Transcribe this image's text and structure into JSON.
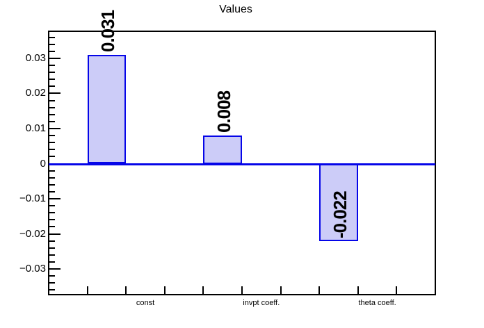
{
  "chart_data": {
    "type": "bar",
    "title": "Values",
    "categories": [
      "const",
      "invpt coeff.",
      "theta coeff."
    ],
    "values": [
      0.031,
      0.008,
      -0.022
    ],
    "value_labels": [
      "0.031",
      "0.008",
      "-0.022"
    ],
    "xlabel": "",
    "ylabel": "",
    "ylim": [
      -0.0373,
      0.0377
    ],
    "y_ticks": [
      {
        "value": 0.03,
        "label": "0.03"
      },
      {
        "value": 0.02,
        "label": "0.02"
      },
      {
        "value": 0.01,
        "label": "0.01"
      },
      {
        "value": 0,
        "label": "0"
      },
      {
        "value": -0.01,
        "label": "−0.01"
      },
      {
        "value": -0.02,
        "label": "−0.02"
      },
      {
        "value": -0.03,
        "label": "−0.03"
      }
    ],
    "y_minor_tick_step": 0.002,
    "x_bins_total": 10,
    "bar_bins": [
      1,
      4,
      7
    ],
    "label_bins": [
      2,
      5,
      8
    ],
    "grid": false,
    "legend": null,
    "colors": {
      "bar_fill": "#ccccf8",
      "bar_border": "#0505e8",
      "zero_line": "#0505e8",
      "frame": "#000000",
      "text": "#000000"
    }
  }
}
